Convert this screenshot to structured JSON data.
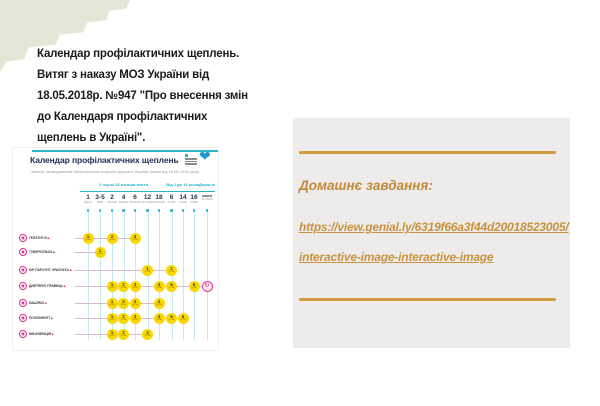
{
  "note": {
    "lines": [
      "Календар профілактичних щеплень.",
      "Витяг з наказу МОЗ України від",
      "18.05.2018р. №947 \"Про внесення змін",
      "до Календаря профілактичних",
      "щеплень в Україні\"."
    ]
  },
  "infographic": {
    "title": "Календар профілактичних щеплень",
    "subtitle": "Чинний, затверджений Міністерством охорони здоров'я України (наказ від 18.05.2018 року)",
    "accent_teal": "#2ab4c6",
    "accent_pink": "#d8308f",
    "dose_yellow": "#f8d800",
    "heart_blue": "#2097d3",
    "dose_caption": "доза",
    "groups": [
      {
        "label": "У перші 18 місяців життя",
        "from": 0,
        "to": 6
      },
      {
        "label": "Від 2 до 16 років",
        "from": 7,
        "to": 9
      },
      {
        "label": "Дорослі",
        "from": 10,
        "to": 10
      }
    ],
    "ages": [
      {
        "num": "1",
        "unit": "день",
        "small": false
      },
      {
        "num": "3-5",
        "unit": "днів",
        "small": false
      },
      {
        "num": "2",
        "unit": "місяці",
        "small": false
      },
      {
        "num": "4",
        "unit": "місяці",
        "small": false
      },
      {
        "num": "6",
        "unit": "місяців",
        "small": false
      },
      {
        "num": "12",
        "unit": "місяців",
        "small": false
      },
      {
        "num": "18",
        "unit": "місяців",
        "small": false
      },
      {
        "num": "6",
        "unit": "років",
        "small": false
      },
      {
        "num": "14",
        "unit": "років",
        "small": false
      },
      {
        "num": "16",
        "unit": "років",
        "small": false
      },
      {
        "num": "кожні",
        "unit": "10 років",
        "small": true
      }
    ],
    "rows": [
      {
        "label": "Гепатит В",
        "icon": "hepatitis-b-icon",
        "doses": [
          {
            "col": 0,
            "n": "1"
          },
          {
            "col": 2,
            "n": "2"
          },
          {
            "col": 4,
            "n": "3"
          }
        ]
      },
      {
        "label": "Туберкульоз",
        "icon": "tuberculosis-icon",
        "doses": [
          {
            "col": 1,
            "n": "1"
          }
        ]
      },
      {
        "label": "Кір, паротит, краснуха",
        "icon": "measles-mumps-rubella-icon",
        "doses": [
          {
            "col": 5,
            "n": "1"
          },
          {
            "col": 7,
            "n": "2"
          }
        ]
      },
      {
        "label": "Дифтерія, правець",
        "icon": "diphtheria-tetanus-icon",
        "doses": [
          {
            "col": 2,
            "n": "1"
          },
          {
            "col": 3,
            "n": "2"
          },
          {
            "col": 4,
            "n": "3"
          },
          {
            "col": 6,
            "n": "4"
          },
          {
            "col": 7,
            "n": "5"
          },
          {
            "col": 9,
            "n": "6"
          },
          {
            "col": 10,
            "n": "↻",
            "revacc": true
          }
        ]
      },
      {
        "label": "Кашлюк",
        "icon": "pertussis-icon",
        "doses": [
          {
            "col": 2,
            "n": "1"
          },
          {
            "col": 3,
            "n": "2"
          },
          {
            "col": 4,
            "n": "3"
          },
          {
            "col": 6,
            "n": "4"
          }
        ]
      },
      {
        "label": "Поліомієліт",
        "icon": "polio-icon",
        "doses": [
          {
            "col": 2,
            "n": "1"
          },
          {
            "col": 3,
            "n": "2"
          },
          {
            "col": 4,
            "n": "3"
          },
          {
            "col": 6,
            "n": "4"
          },
          {
            "col": 7,
            "n": "5"
          },
          {
            "col": 8,
            "n": "6"
          }
        ]
      },
      {
        "label": "Hib-інфекція",
        "icon": "hib-infection-icon",
        "doses": [
          {
            "col": 2,
            "n": "1"
          },
          {
            "col": 3,
            "n": "2"
          },
          {
            "col": 5,
            "n": "3"
          }
        ]
      }
    ]
  },
  "homework": {
    "heading": "Домашнє завдання:",
    "link_line1": "https://view.genial.ly/6319f66a3f44d20018523005/",
    "link_line2": "interactive-image-interactive-image",
    "accent_gold": "#d29b43",
    "panel_bg": "#edeceb"
  }
}
